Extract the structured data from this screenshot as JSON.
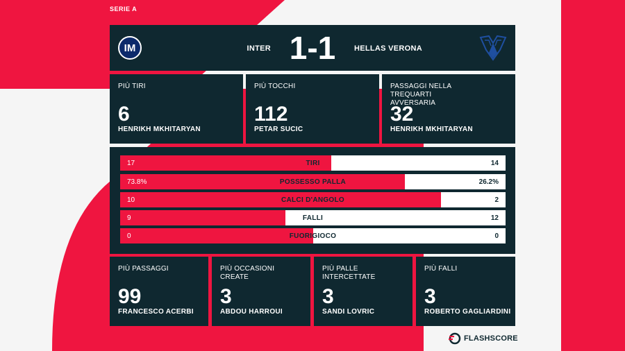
{
  "colors": {
    "background": "#f5f5f5",
    "accent_red": "#ef1540",
    "panel": "#0f2830",
    "bar_bg": "#ffffff"
  },
  "league": "SERIE A",
  "match": {
    "home_team": "INTER",
    "away_team": "HELLAS VERONA",
    "home_score": "1",
    "separator": "-",
    "away_score": "1",
    "home_logo_icon": "inter-crest-icon",
    "away_logo_icon": "verona-crest-icon"
  },
  "top_cards": [
    {
      "title": "PIÙ TIRI",
      "value": "6",
      "player": "HENRIKH MKHITARYAN"
    },
    {
      "title": "PIÙ TOCCHI",
      "value": "112",
      "player": "PETAR SUCIC"
    },
    {
      "title": "PASSAGGI NELLA TREQUARTI AVVERSARIA",
      "value": "32",
      "player": "HENRIKH MKHITARYAN"
    }
  ],
  "stats": [
    {
      "label": "TIRI",
      "home": "17",
      "away": "14",
      "home_share": 0.548
    },
    {
      "label": "POSSESSO PALLA",
      "home": "73.8%",
      "away": "26.2%",
      "home_share": 0.738
    },
    {
      "label": "CALCI D'ANGOLO",
      "home": "10",
      "away": "2",
      "home_share": 0.833
    },
    {
      "label": "FALLI",
      "home": "9",
      "away": "12",
      "home_share": 0.429
    },
    {
      "label": "FUORIGIOCO",
      "home": "0",
      "away": "0",
      "home_share": 0.5
    }
  ],
  "bottom_cards": [
    {
      "title": "PIÙ PASSAGGI",
      "value": "99",
      "player": "FRANCESCO ACERBI"
    },
    {
      "title": "PIÙ OCCASIONI CREATE",
      "value": "3",
      "player": "ABDOU HARROUI"
    },
    {
      "title": "PIÙ PALLE INTERCETTATE",
      "value": "3",
      "player": "SANDI LOVRIC"
    },
    {
      "title": "PIÙ FALLI",
      "value": "3",
      "player": "ROBERTO GAGLIARDINI"
    }
  ],
  "brand": {
    "name": "FLASHSCORE",
    "icon": "flashscore-logo-icon"
  }
}
